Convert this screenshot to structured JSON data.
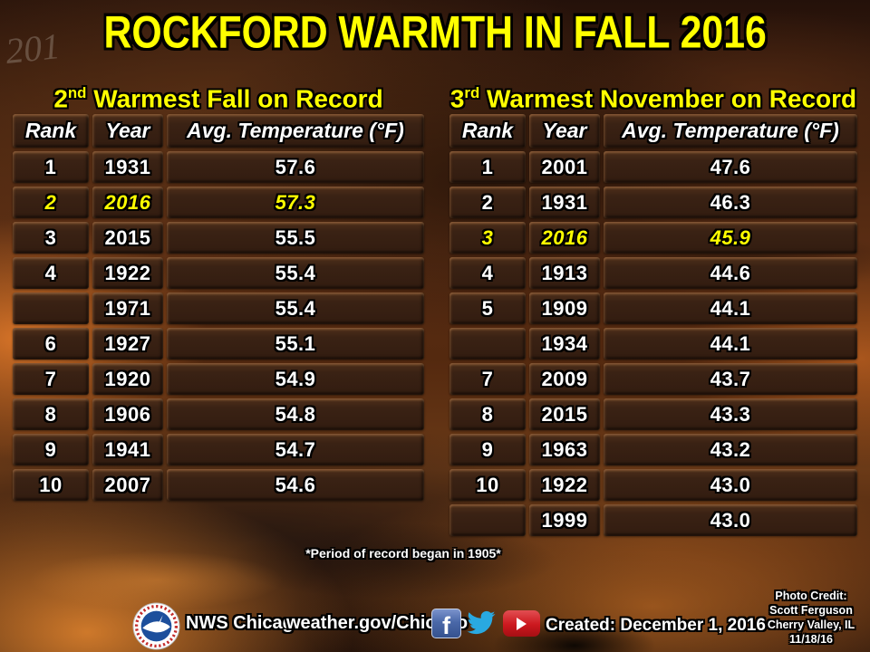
{
  "title": "ROCKFORD WARMTH IN FALL 2016",
  "watermark": "201",
  "chart_data": [
    {
      "type": "table",
      "title": "2nd Warmest Fall on Record",
      "title_parts": {
        "num": "2",
        "suffix": "nd",
        "rest": " Warmest Fall on Record"
      },
      "columns": [
        "Rank",
        "Year",
        "Avg. Temperature (°F)"
      ],
      "highlight_row": 1,
      "rows": [
        [
          "1",
          "1931",
          "57.6"
        ],
        [
          "2",
          "2016",
          "57.3"
        ],
        [
          "3",
          "2015",
          "55.5"
        ],
        [
          "4",
          "1922",
          "55.4"
        ],
        [
          "",
          "1971",
          "55.4"
        ],
        [
          "6",
          "1927",
          "55.1"
        ],
        [
          "7",
          "1920",
          "54.9"
        ],
        [
          "8",
          "1906",
          "54.8"
        ],
        [
          "9",
          "1941",
          "54.7"
        ],
        [
          "10",
          "2007",
          "54.6"
        ]
      ]
    },
    {
      "type": "table",
      "title": "3rd Warmest November on Record",
      "title_parts": {
        "num": "3",
        "suffix": "rd",
        "rest": " Warmest November on Record"
      },
      "columns": [
        "Rank",
        "Year",
        "Avg. Temperature (°F)"
      ],
      "highlight_row": 2,
      "rows": [
        [
          "1",
          "2001",
          "47.6"
        ],
        [
          "2",
          "1931",
          "46.3"
        ],
        [
          "3",
          "2016",
          "45.9"
        ],
        [
          "4",
          "1913",
          "44.6"
        ],
        [
          "5",
          "1909",
          "44.1"
        ],
        [
          "",
          "1934",
          "44.1"
        ],
        [
          "7",
          "2009",
          "43.7"
        ],
        [
          "8",
          "2015",
          "43.3"
        ],
        [
          "9",
          "1963",
          "43.2"
        ],
        [
          "10",
          "1922",
          "43.0"
        ],
        [
          "",
          "1999",
          "43.0"
        ]
      ]
    }
  ],
  "footnote": "*Period of record began in 1905*",
  "footer": {
    "agency": "NWS Chicago",
    "website": "weather.gov/Chicago",
    "created": "Created: December 1, 2016",
    "photo_credit": [
      "Photo Credit:",
      "Scott Ferguson",
      "Cherry Valley,  IL",
      "11/18/16"
    ]
  },
  "icons": {
    "nws_logo": "nws-seal-icon",
    "facebook": "facebook-icon",
    "facebook_glyph": "f",
    "twitter": "twitter-icon",
    "youtube": "youtube-icon"
  },
  "colors": {
    "title_yellow": "#ffff00",
    "highlight_yellow": "#ffff00",
    "table_cell_brown": "#3a2214",
    "text_white": "#ffffff",
    "facebook_blue": "#3b5998",
    "twitter_blue": "#29a9e1",
    "youtube_red": "#cc181e"
  }
}
